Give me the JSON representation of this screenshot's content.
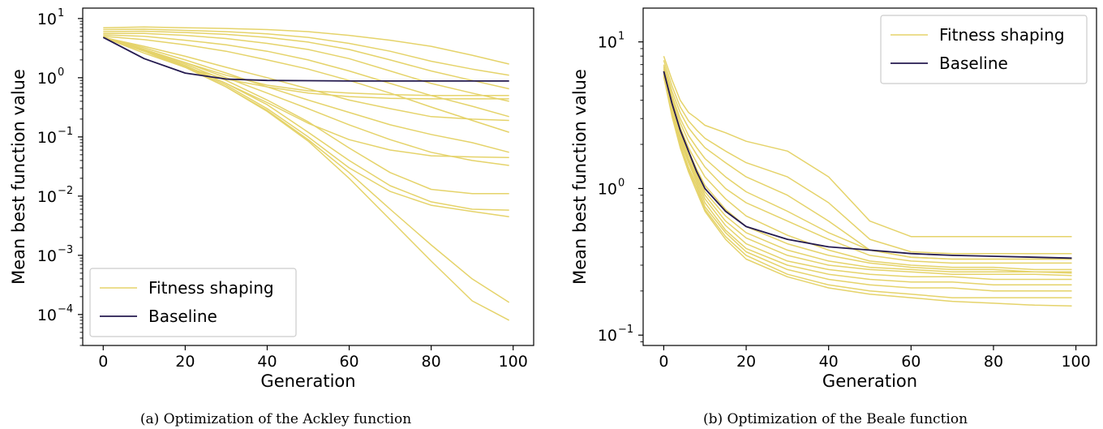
{
  "colors": {
    "fitness": "#e5d36a",
    "baseline": "#241a4f"
  },
  "chart_data": [
    {
      "type": "line",
      "caption": "(a) Optimization of the Ackley function",
      "xlabel": "Generation",
      "ylabel": "Mean best function value",
      "xlim": [
        -5,
        105
      ],
      "ylim": [
        3e-05,
        15
      ],
      "yscale": "log",
      "grid": false,
      "legend_position": "lower-left",
      "xticks": [
        0,
        20,
        40,
        60,
        80,
        100
      ],
      "xtick_labels": [
        "0",
        "20",
        "40",
        "60",
        "80",
        "100"
      ],
      "yticks": [
        {
          "value": 0.0001,
          "base": "10",
          "exp": "−4"
        },
        {
          "value": 0.001,
          "base": "10",
          "exp": "−3"
        },
        {
          "value": 0.01,
          "base": "10",
          "exp": "−2"
        },
        {
          "value": 0.1,
          "base": "10",
          "exp": "−1"
        },
        {
          "value": 1,
          "base": "10",
          "exp": "0"
        },
        {
          "value": 10,
          "base": "10",
          "exp": "1"
        }
      ],
      "legend": [
        "Fitness shaping",
        "Baseline"
      ],
      "x": [
        0,
        10,
        20,
        30,
        40,
        50,
        60,
        70,
        80,
        90,
        99
      ],
      "series": [
        {
          "name": "Baseline",
          "role": "baseline",
          "values": [
            4.8,
            2.1,
            1.2,
            0.95,
            0.9,
            0.89,
            0.88,
            0.88,
            0.88,
            0.88,
            0.88
          ]
        },
        {
          "name": "Fitness shaping",
          "role": "fitness",
          "values": [
            7.0,
            7.2,
            7.0,
            6.8,
            6.5,
            6.0,
            5.2,
            4.3,
            3.4,
            2.4,
            1.7
          ]
        },
        {
          "name": "Fitness shaping",
          "role": "fitness",
          "values": [
            6.5,
            6.6,
            6.3,
            6.0,
            5.5,
            4.8,
            3.8,
            2.8,
            1.9,
            1.4,
            1.1
          ]
        },
        {
          "name": "Fitness shaping",
          "role": "fitness",
          "values": [
            6.0,
            6.1,
            5.8,
            5.4,
            4.8,
            4.0,
            3.0,
            2.0,
            1.3,
            0.9,
            0.65
          ]
        },
        {
          "name": "Fitness shaping",
          "role": "fitness",
          "values": [
            5.6,
            5.6,
            5.2,
            4.6,
            3.8,
            3.0,
            2.1,
            1.3,
            0.8,
            0.55,
            0.4
          ]
        },
        {
          "name": "Fitness shaping",
          "role": "fitness",
          "values": [
            5.3,
            5.0,
            4.3,
            3.6,
            2.8,
            2.0,
            1.3,
            0.8,
            0.5,
            0.33,
            0.22
          ]
        },
        {
          "name": "Fitness shaping",
          "role": "fitness",
          "values": [
            5.0,
            4.4,
            3.6,
            2.8,
            2.0,
            1.4,
            0.9,
            0.55,
            0.32,
            0.19,
            0.12
          ]
        },
        {
          "name": "Fitness shaping",
          "role": "fitness",
          "values": [
            4.9,
            3.0,
            1.8,
            1.1,
            0.75,
            0.6,
            0.55,
            0.52,
            0.5,
            0.5,
            0.5
          ]
        },
        {
          "name": "Fitness shaping",
          "role": "fitness",
          "values": [
            4.8,
            2.6,
            1.5,
            0.95,
            0.7,
            0.55,
            0.48,
            0.45,
            0.44,
            0.44,
            0.44
          ]
        },
        {
          "name": "Fitness shaping",
          "role": "fitness",
          "values": [
            4.8,
            3.4,
            2.3,
            1.5,
            1.0,
            0.65,
            0.42,
            0.3,
            0.22,
            0.2,
            0.19
          ]
        },
        {
          "name": "Fitness shaping",
          "role": "fitness",
          "values": [
            4.8,
            3.2,
            2.0,
            1.2,
            0.7,
            0.42,
            0.26,
            0.16,
            0.11,
            0.08,
            0.055
          ]
        },
        {
          "name": "Fitness shaping",
          "role": "fitness",
          "values": [
            4.8,
            3.0,
            1.8,
            1.0,
            0.55,
            0.3,
            0.16,
            0.09,
            0.055,
            0.04,
            0.033
          ]
        },
        {
          "name": "Fitness shaping",
          "role": "fitness",
          "values": [
            4.8,
            2.8,
            1.6,
            0.8,
            0.38,
            0.17,
            0.09,
            0.06,
            0.048,
            0.046,
            0.045
          ]
        },
        {
          "name": "Fitness shaping",
          "role": "fitness",
          "values": [
            4.8,
            2.9,
            1.7,
            0.9,
            0.42,
            0.18,
            0.065,
            0.025,
            0.013,
            0.011,
            0.011
          ]
        },
        {
          "name": "Fitness shaping",
          "role": "fitness",
          "values": [
            4.8,
            2.9,
            1.6,
            0.8,
            0.35,
            0.12,
            0.04,
            0.015,
            0.008,
            0.006,
            0.0058
          ]
        },
        {
          "name": "Fitness shaping",
          "role": "fitness",
          "values": [
            4.8,
            2.8,
            1.55,
            0.75,
            0.3,
            0.1,
            0.03,
            0.012,
            0.007,
            0.0055,
            0.0045
          ]
        },
        {
          "name": "Fitness shaping",
          "role": "fitness",
          "values": [
            4.8,
            2.8,
            1.5,
            0.7,
            0.28,
            0.09,
            0.025,
            0.006,
            0.0015,
            0.0004,
            0.00016
          ]
        },
        {
          "name": "Fitness shaping",
          "role": "fitness",
          "values": [
            4.8,
            2.8,
            1.5,
            0.7,
            0.27,
            0.085,
            0.02,
            0.004,
            0.0008,
            0.00017,
            8e-05
          ]
        }
      ]
    },
    {
      "type": "line",
      "caption": "(b) Optimization of the Beale function",
      "xlabel": "Generation",
      "ylabel": "Mean best function value",
      "xlim": [
        -5,
        105
      ],
      "ylim": [
        0.085,
        17
      ],
      "yscale": "log",
      "grid": false,
      "legend_position": "upper-right",
      "xticks": [
        0,
        20,
        40,
        60,
        80,
        100
      ],
      "xtick_labels": [
        "0",
        "20",
        "40",
        "60",
        "80",
        "100"
      ],
      "yticks": [
        {
          "value": 0.1,
          "base": "10",
          "exp": "−1"
        },
        {
          "value": 1,
          "base": "10",
          "exp": "0"
        },
        {
          "value": 10,
          "base": "10",
          "exp": "1"
        }
      ],
      "legend": [
        "Fitness shaping",
        "Baseline"
      ],
      "x": [
        0,
        2,
        4,
        6,
        8,
        10,
        15,
        20,
        30,
        40,
        50,
        60,
        70,
        80,
        90,
        99
      ],
      "series": [
        {
          "name": "Baseline",
          "role": "baseline",
          "values": [
            6.3,
            3.8,
            2.5,
            1.8,
            1.3,
            1.0,
            0.7,
            0.55,
            0.45,
            0.4,
            0.38,
            0.36,
            0.35,
            0.345,
            0.34,
            0.335
          ]
        },
        {
          "name": "Fitness shaping",
          "role": "fitness",
          "values": [
            8.0,
            5.5,
            4.0,
            3.3,
            3.0,
            2.7,
            2.4,
            2.1,
            1.8,
            1.2,
            0.6,
            0.47,
            0.47,
            0.47,
            0.47,
            0.47
          ]
        },
        {
          "name": "Fitness shaping",
          "role": "fitness",
          "values": [
            7.5,
            5.0,
            3.6,
            2.9,
            2.5,
            2.2,
            1.8,
            1.5,
            1.2,
            0.8,
            0.45,
            0.37,
            0.36,
            0.36,
            0.36,
            0.36
          ]
        },
        {
          "name": "Fitness shaping",
          "role": "fitness",
          "values": [
            7.0,
            4.6,
            3.3,
            2.6,
            2.2,
            1.9,
            1.5,
            1.2,
            0.9,
            0.6,
            0.38,
            0.34,
            0.33,
            0.33,
            0.33,
            0.33
          ]
        },
        {
          "name": "Fitness shaping",
          "role": "fitness",
          "values": [
            6.8,
            4.3,
            3.0,
            2.3,
            1.9,
            1.6,
            1.2,
            0.95,
            0.7,
            0.5,
            0.38,
            0.34,
            0.33,
            0.33,
            0.33,
            0.33
          ]
        },
        {
          "name": "Fitness shaping",
          "role": "fitness",
          "values": [
            6.6,
            4.1,
            2.8,
            2.1,
            1.7,
            1.4,
            1.0,
            0.8,
            0.6,
            0.45,
            0.35,
            0.32,
            0.31,
            0.31,
            0.31,
            0.31
          ]
        },
        {
          "name": "Fitness shaping",
          "role": "fitness",
          "values": [
            6.4,
            3.9,
            2.6,
            1.9,
            1.5,
            1.2,
            0.85,
            0.65,
            0.48,
            0.38,
            0.32,
            0.3,
            0.29,
            0.29,
            0.28,
            0.28
          ]
        },
        {
          "name": "Fitness shaping",
          "role": "fitness",
          "values": [
            6.3,
            3.8,
            2.5,
            1.8,
            1.35,
            1.05,
            0.72,
            0.55,
            0.42,
            0.35,
            0.31,
            0.29,
            0.28,
            0.28,
            0.27,
            0.27
          ]
        },
        {
          "name": "Fitness shaping",
          "role": "fitness",
          "values": [
            6.2,
            3.7,
            2.4,
            1.7,
            1.25,
            0.95,
            0.65,
            0.5,
            0.38,
            0.32,
            0.29,
            0.28,
            0.27,
            0.27,
            0.27,
            0.265
          ]
        },
        {
          "name": "Fitness shaping",
          "role": "fitness",
          "values": [
            6.1,
            3.6,
            2.3,
            1.6,
            1.2,
            0.9,
            0.6,
            0.46,
            0.35,
            0.3,
            0.28,
            0.27,
            0.26,
            0.26,
            0.26,
            0.255
          ]
        },
        {
          "name": "Fitness shaping",
          "role": "fitness",
          "values": [
            6.0,
            3.5,
            2.2,
            1.55,
            1.15,
            0.85,
            0.56,
            0.42,
            0.32,
            0.28,
            0.26,
            0.25,
            0.25,
            0.24,
            0.24,
            0.24
          ]
        },
        {
          "name": "Fitness shaping",
          "role": "fitness",
          "values": [
            6.0,
            3.4,
            2.1,
            1.5,
            1.1,
            0.8,
            0.52,
            0.39,
            0.3,
            0.26,
            0.24,
            0.23,
            0.23,
            0.22,
            0.22,
            0.22
          ]
        },
        {
          "name": "Fitness shaping",
          "role": "fitness",
          "values": [
            5.9,
            3.3,
            2.0,
            1.4,
            1.05,
            0.75,
            0.5,
            0.37,
            0.28,
            0.24,
            0.22,
            0.21,
            0.21,
            0.2,
            0.2,
            0.2
          ]
        },
        {
          "name": "Fitness shaping",
          "role": "fitness",
          "values": [
            5.8,
            3.2,
            2.0,
            1.35,
            1.0,
            0.72,
            0.47,
            0.35,
            0.26,
            0.22,
            0.2,
            0.19,
            0.18,
            0.18,
            0.18,
            0.18
          ]
        },
        {
          "name": "Fitness shaping",
          "role": "fitness",
          "values": [
            5.8,
            3.1,
            1.9,
            1.3,
            0.95,
            0.7,
            0.45,
            0.33,
            0.25,
            0.21,
            0.19,
            0.18,
            0.17,
            0.165,
            0.16,
            0.158
          ]
        }
      ]
    }
  ]
}
